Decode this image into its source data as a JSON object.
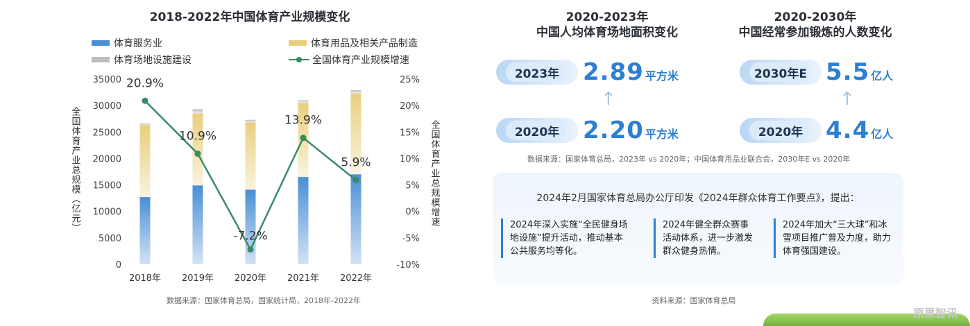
{
  "left": {
    "title": "2018-2022年中国体育产业规模变化",
    "legend": {
      "service": "体育服务业",
      "manufacturing": "体育用品及相关产品制造",
      "facilities": "体育场地设施建设",
      "growth": "全国体育产业规模增速"
    },
    "source": "数据来源：国家体育总局，国家统计局，2018年-2022年"
  },
  "chart_data": {
    "type": "bar",
    "stacked": true,
    "categories": [
      "2018年",
      "2019年",
      "2020年",
      "2021年",
      "2022年"
    ],
    "series": [
      {
        "name": "体育服务业",
        "values": [
          12700,
          14900,
          14100,
          16500,
          17000
        ],
        "color": "#4a8fd6"
      },
      {
        "name": "体育用品及相关产品制造",
        "values": [
          13600,
          13600,
          12700,
          14000,
          15300
        ],
        "color": "#e9cf7e"
      },
      {
        "name": "体育场地设施建设",
        "values": [
          300,
          800,
          500,
          500,
          600
        ],
        "color": "#bdbdbd"
      }
    ],
    "line_series": {
      "name": "全国体育产业规模增速",
      "values": [
        20.9,
        10.9,
        -7.2,
        13.9,
        5.9
      ],
      "labels": [
        "20.9%",
        "10.9%",
        "-7.2%",
        "13.9%",
        "5.9%"
      ],
      "color": "#3a8a66"
    },
    "ylabel": "全国体育产业总规模（亿元）",
    "y2label": "全国体育产业总规模增速",
    "ylim": [
      0,
      35000
    ],
    "y2lim": [
      -10,
      25
    ],
    "yticks": [
      "0",
      "5000",
      "10000",
      "15000",
      "20000",
      "25000",
      "30000",
      "35000"
    ],
    "y2ticks": [
      "-10%",
      "-5%",
      "0%",
      "5%",
      "10%",
      "15%",
      "20%",
      "25%"
    ]
  },
  "area": {
    "title_line1": "2020-2023年",
    "title_line2": "中国人均体育场地面积变化",
    "year_top": "2023年",
    "value_top": "2.89",
    "year_bottom": "2020年",
    "value_bottom": "2.20",
    "unit": "平方米"
  },
  "people": {
    "title_line1": "2020-2030年",
    "title_line2": "中国经常参加锻炼的人数变化",
    "year_top": "2030年E",
    "value_top": "5.5",
    "year_bottom": "2020年",
    "value_bottom": "4.4",
    "unit": "亿人"
  },
  "right_source": "数据来源：国家体育总局，2023年 vs 2020年；中国体育用品业联合会，2030年E vs 2020年",
  "policy": {
    "title": "2024年2月国家体育总局办公厅印发《2024年群众体育工作要点》，提出：",
    "items": [
      "2024年深入实施“全民健身场地设施”提升活动，推动基本公共服务均等化。",
      "2024年健全群众赛事活动体系，进一步激发群众健身热情。",
      "2024年加大“三大球”和冰雪项目推广普及力度，助力体育强国建设。"
    ]
  },
  "bottom_source": "资料来源：国家体育总局",
  "watermark": "原果智讯"
}
